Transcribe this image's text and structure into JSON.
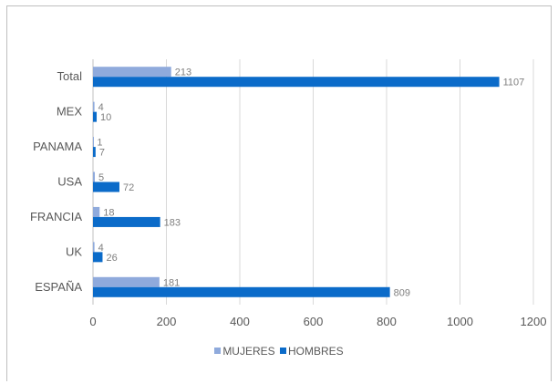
{
  "chart_data": {
    "type": "bar",
    "orientation": "horizontal",
    "categories": [
      "Total",
      "MEX",
      "PANAMA",
      "USA",
      "FRANCIA",
      "UK",
      "ESPAÑA"
    ],
    "series": [
      {
        "name": "MUJERES",
        "color": "#8faadc",
        "values": [
          213,
          4,
          1,
          5,
          18,
          4,
          181
        ]
      },
      {
        "name": "HOMBRES",
        "color": "#0b6bc9",
        "values": [
          1107,
          10,
          7,
          72,
          183,
          26,
          809
        ]
      }
    ],
    "xlim": [
      0,
      1200
    ],
    "xticks": [
      0,
      200,
      400,
      600,
      800,
      1000,
      1200
    ],
    "grid": true,
    "legend_position": "bottom",
    "title": "",
    "xlabel": "",
    "ylabel": ""
  }
}
